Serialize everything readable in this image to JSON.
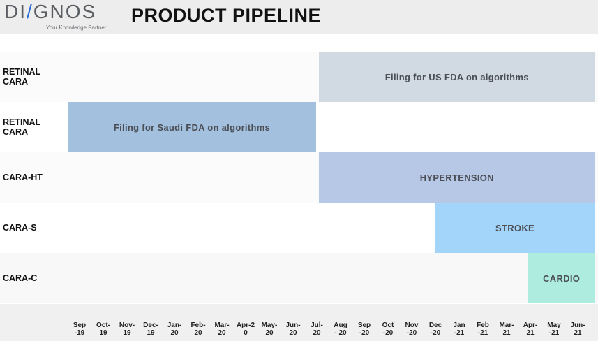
{
  "header": {
    "logo_text_before": "DI",
    "logo_slash": "/",
    "logo_text_after": "GNOS",
    "logo_tagline": "Your Knowledge Partner",
    "title": "PRODUCT PIPELINE"
  },
  "chart_data": {
    "type": "gantt",
    "title": "PRODUCT PIPELINE",
    "categories": [
      "Sep\n-19",
      "Oct-\n19",
      "Nov-\n19",
      "Dec-\n19",
      "Jan-\n20",
      "Feb-\n20",
      "Mar-\n20",
      "Apr-2\n0",
      "May-\n20",
      "Jun-\n20",
      "Jul-\n20",
      "Aug\n- 20",
      "Sep\n-20",
      "Oct\n-20",
      "Nov\n-20",
      "Dec\n-20",
      "Jan\n-21",
      "Feb\n-21",
      "Mar-\n21",
      "Apr-\n21",
      "May\n-21",
      "Jun-\n21"
    ],
    "rows": [
      {
        "label": "RETINAL\nCARA",
        "task": "Filing for US FDA on algorithms",
        "start": "Jul-20",
        "end": "Jun-21",
        "color": "#d1dae3"
      },
      {
        "label": "RETINAL\nCARA",
        "task": "Filing for Saudi  FDA on algorithms",
        "start": "Sep-19",
        "end": "Jun-20",
        "color": "#a3c1df"
      },
      {
        "label": "CARA-HT",
        "task": "HYPERTENSION",
        "start": "Jul-20",
        "end": "Jun-21",
        "color": "#b7c7e6"
      },
      {
        "label": "CARA-S",
        "task": "STROKE",
        "start": "Dec-20",
        "end": "Jun-21",
        "color": "#a3d4fa"
      },
      {
        "label": "CARA-C",
        "task": "CARDIO",
        "start": "Apr-21",
        "end": "Jun-21",
        "color": "#aeece0"
      }
    ]
  }
}
